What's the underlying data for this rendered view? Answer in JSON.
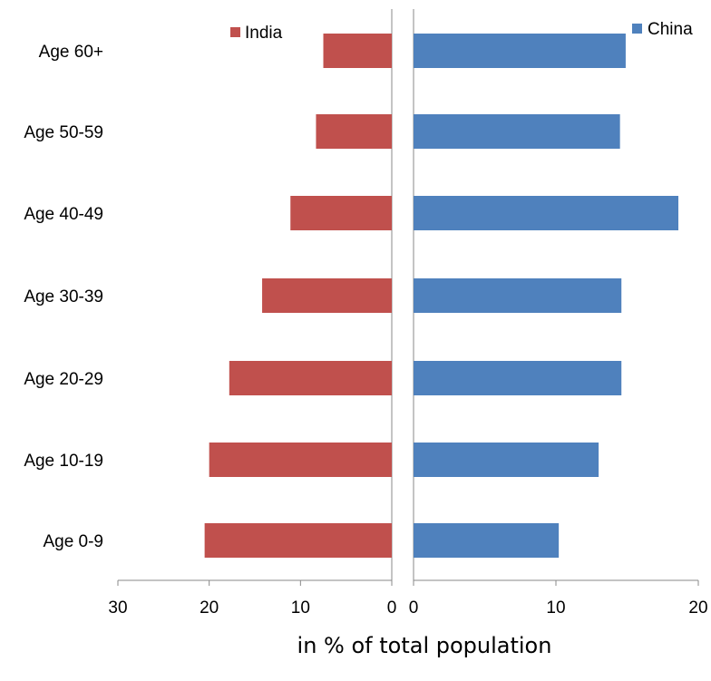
{
  "chart_data": {
    "type": "bar",
    "orientation": "horizontal-butterfly",
    "categories": [
      "Age 0-9",
      "Age 10-19",
      "Age 20-29",
      "Age 30-39",
      "Age 40-49",
      "Age 50-59",
      "Age 60+"
    ],
    "series": [
      {
        "name": "India",
        "color": "#C0504D",
        "values": [
          20.5,
          20.0,
          17.8,
          14.2,
          11.1,
          8.3,
          7.5
        ],
        "xlim": [
          30,
          0
        ]
      },
      {
        "name": "China",
        "color": "#4F81BD",
        "values": [
          10.2,
          13.0,
          14.6,
          14.6,
          18.6,
          14.5,
          14.9
        ],
        "xlim": [
          0,
          20
        ]
      }
    ],
    "left_ticks": [
      "30",
      "20",
      "10",
      "0"
    ],
    "right_ticks": [
      "0",
      "10",
      "20"
    ],
    "xlabel": "in % of total population",
    "legend": "top, one entry above each side",
    "grid": false
  }
}
